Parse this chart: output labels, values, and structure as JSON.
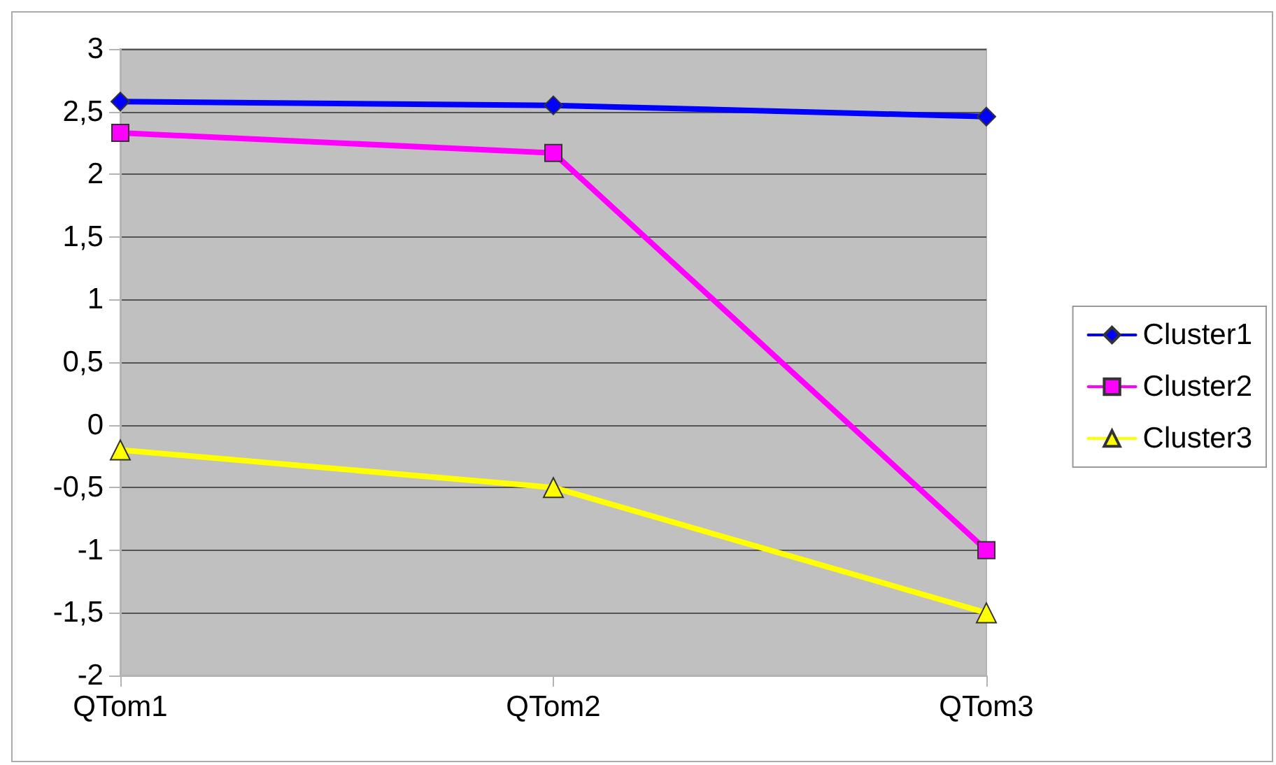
{
  "chart_data": {
    "type": "line",
    "categories": [
      "QTom1",
      "QTom2",
      "QTom3"
    ],
    "series": [
      {
        "name": "Cluster1",
        "color": "#0000ff",
        "marker": "diamond",
        "values": [
          2.58,
          2.55,
          2.46
        ]
      },
      {
        "name": "Cluster2",
        "color": "#ff00ff",
        "marker": "square",
        "values": [
          2.33,
          2.17,
          -1.0
        ]
      },
      {
        "name": "Cluster3",
        "color": "#ffff00",
        "marker": "triangle",
        "values": [
          -0.2,
          -0.5,
          -1.5
        ]
      }
    ],
    "ylim": [
      -2,
      3
    ],
    "yticks": [
      -2,
      {
        "value": -1.5,
        "label": "-1,5"
      },
      -1,
      {
        "value": -0.5,
        "label": "-0,5"
      },
      0,
      {
        "value": 0.5,
        "label": "0,5"
      },
      1,
      {
        "value": 1.5,
        "label": "1,5"
      },
      2,
      {
        "value": 2.5,
        "label": "2,5"
      },
      3
    ],
    "grid": "y",
    "legend": "right",
    "line_style": "solid"
  }
}
